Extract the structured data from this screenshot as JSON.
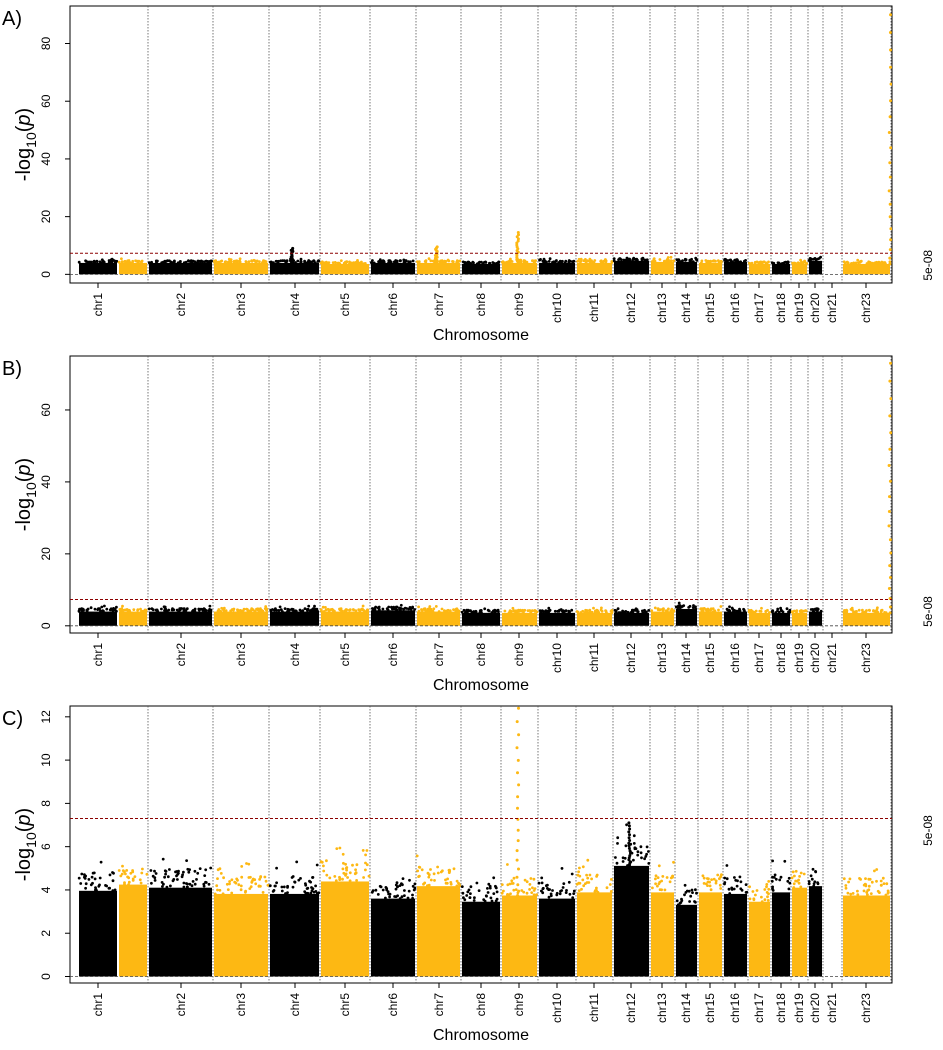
{
  "chart_data": [
    {
      "type": "scatter",
      "panel_label": "A)",
      "xlabel": "Chromosome",
      "ylabel": "-log10(p)",
      "ylim": [
        -3,
        93
      ],
      "yticks": [
        0,
        20,
        40,
        60,
        80
      ],
      "threshold": {
        "label": "5e-08",
        "value": 7.3
      },
      "categories": [
        "chr1",
        "chr2",
        "chr3",
        "chr4",
        "chr5",
        "chr6",
        "chr7",
        "chr8",
        "chr9",
        "chr10",
        "chr11",
        "chr12",
        "chr13",
        "chr14",
        "chr15",
        "chr16",
        "chr17",
        "chr18",
        "chr19",
        "chr20",
        "chr21",
        "chr23"
      ],
      "baseline_max": [
        5.5,
        5.5,
        5.5,
        5.5,
        5.5,
        5.0,
        5.5,
        5.5,
        5.0,
        5.5,
        5.5,
        5.5,
        6.5,
        6.0,
        6.0,
        5.5,
        6.0,
        5.0,
        5.0,
        5.0,
        6.5,
        5.0
      ],
      "peaks": [
        {
          "chr": "chr5",
          "value": 9
        },
        {
          "chr": "chr8",
          "value": 9.5
        },
        {
          "chr": "chr10",
          "value": 14.5
        },
        {
          "chr": "chr23",
          "value": 90
        }
      ],
      "colors": {
        "odd": "#000000",
        "even": "#FDB813",
        "threshold": "#8B0000"
      }
    },
    {
      "type": "scatter",
      "panel_label": "B)",
      "xlabel": "Chromosome",
      "ylabel": "-log10(p)",
      "ylim": [
        -2,
        75
      ],
      "yticks": [
        0,
        20,
        40,
        60
      ],
      "threshold": {
        "label": "5e-08",
        "value": 7.3
      },
      "categories": [
        "chr1",
        "chr2",
        "chr3",
        "chr4",
        "chr5",
        "chr6",
        "chr7",
        "chr8",
        "chr9",
        "chr10",
        "chr11",
        "chr12",
        "chr13",
        "chr14",
        "chr15",
        "chr16",
        "chr17",
        "chr18",
        "chr19",
        "chr20",
        "chr21",
        "chr23"
      ],
      "baseline_max": [
        5.5,
        5.5,
        5.5,
        5.5,
        5.5,
        5.5,
        6.0,
        5.5,
        5.0,
        5.0,
        5.0,
        5.0,
        5.0,
        5.5,
        6.5,
        5.5,
        5.5,
        5.0,
        5.0,
        5.0,
        5.5,
        5.0
      ],
      "peaks": [
        {
          "chr": "chr23",
          "value": 73
        }
      ],
      "colors": {
        "odd": "#000000",
        "even": "#FDB813",
        "threshold": "#8B0000"
      }
    },
    {
      "type": "scatter",
      "panel_label": "C)",
      "xlabel": "Chromosome",
      "ylabel": "-log10(p)",
      "ylim": [
        -0.3,
        12.5
      ],
      "yticks": [
        0,
        2,
        4,
        6,
        8,
        10,
        12
      ],
      "threshold": {
        "label": "5e-08",
        "value": 7.3
      },
      "categories": [
        "chr1",
        "chr2",
        "chr3",
        "chr4",
        "chr5",
        "chr6",
        "chr7",
        "chr8",
        "chr9",
        "chr10",
        "chr11",
        "chr12",
        "chr13",
        "chr14",
        "chr15",
        "chr16",
        "chr17",
        "chr18",
        "chr19",
        "chr20",
        "chr21",
        "chr23"
      ],
      "baseline_max": [
        5.5,
        5.9,
        5.7,
        5.3,
        5.3,
        6.1,
        5.0,
        5.8,
        4.8,
        5.2,
        5.0,
        5.4,
        7.1,
        5.4,
        4.6,
        5.4,
        5.3,
        4.8,
        5.4,
        5.7,
        5.8,
        5.2
      ],
      "peaks": [
        {
          "chr": "chr10",
          "value": 12.4
        },
        {
          "chr": "chr13",
          "value": 7.1
        }
      ],
      "colors": {
        "odd": "#000000",
        "even": "#FDB813",
        "threshold": "#8B0000"
      }
    }
  ]
}
